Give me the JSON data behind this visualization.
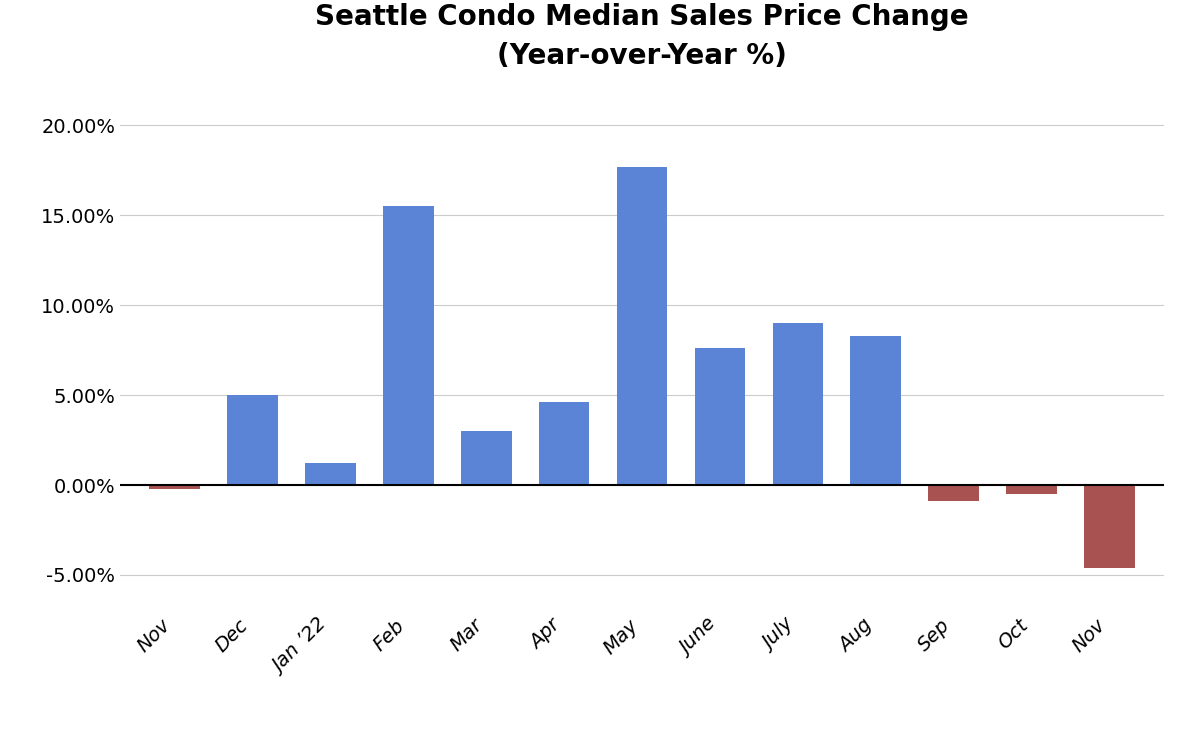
{
  "categories": [
    "Nov",
    "Dec",
    "Jan ’22",
    "Feb",
    "Mar",
    "Apr",
    "May",
    "June",
    "July",
    "Aug",
    "Sep",
    "Oct",
    "Nov"
  ],
  "values": [
    -0.002,
    0.05,
    0.012,
    0.155,
    0.03,
    0.046,
    0.177,
    0.076,
    0.09,
    0.083,
    -0.009,
    -0.005,
    -0.046
  ],
  "positive_color": "#5B84D6",
  "negative_color": "#A85252",
  "title_line1": "Seattle Condo Median Sales Price Change",
  "title_line2": "(Year-over-Year %)",
  "ylim": [
    -0.07,
    0.22
  ],
  "yticks": [
    -0.05,
    0.0,
    0.05,
    0.1,
    0.15,
    0.2
  ],
  "background_color": "#ffffff",
  "grid_color": "#cccccc",
  "title_fontsize": 20,
  "tick_fontsize": 14,
  "bar_width": 0.65
}
